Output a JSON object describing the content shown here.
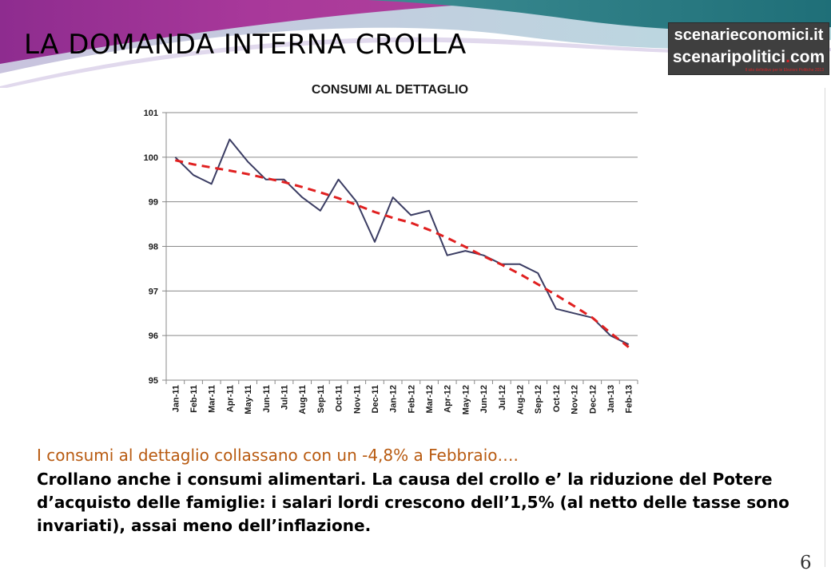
{
  "slide": {
    "title": "LA DOMANDA INTERNA CROLLA",
    "page_number": "6",
    "logo": {
      "line1": "scenarieconomici.it",
      "line2_main": "scenaripolitici",
      "line2_dot": ".",
      "line2_tail": "com",
      "tagline": "Il sito definitivo per le Elezioni Politiche 2013"
    },
    "caption": {
      "line1": "I consumi al dettaglio collassano con un -4,8% a Febbraio….",
      "line2": "Crollano anche i consumi alimentari. La causa del crollo e’ la riduzione del Potere d’acquisto delle famiglie: i salari lordi crescono dell’1,5% (al netto delle tasse sono invariati),  assai meno dell’inflazione."
    },
    "colors": {
      "accent_magenta": "#a0338f",
      "accent_teal": "#2a7f86",
      "caption_orange": "#b85a10",
      "series_line": "#3b3d63",
      "trend_line": "#e02020"
    }
  },
  "chart_data": {
    "type": "line",
    "title": "CONSUMI AL DETTAGLIO",
    "xlabel": "",
    "ylabel": "",
    "ylim": [
      95,
      101
    ],
    "yticks": [
      95,
      96,
      97,
      98,
      99,
      100,
      101
    ],
    "grid": true,
    "legend": "none",
    "categories": [
      "Jan-11",
      "Feb-11",
      "Mar-11",
      "Apr-11",
      "May-11",
      "Jun-11",
      "Jul-11",
      "Aug-11",
      "Sep-11",
      "Oct-11",
      "Nov-11",
      "Dec-11",
      "Jan-12",
      "Feb-12",
      "Mar-12",
      "Apr-12",
      "May-12",
      "Jun-12",
      "Jul-12",
      "Aug-12",
      "Sep-12",
      "Oct-12",
      "Nov-12",
      "Dec-12",
      "Jan-13",
      "Feb-13"
    ],
    "series": [
      {
        "values": [
          100.0,
          99.6,
          99.4,
          100.4,
          99.9,
          99.5,
          99.5,
          99.1,
          98.8,
          99.5,
          99.0,
          98.1,
          99.1,
          98.7,
          98.8,
          97.8,
          97.9,
          97.8,
          97.6,
          97.6,
          97.4,
          96.6,
          96.5,
          96.4,
          96.0,
          95.8
        ],
        "style": "solid"
      },
      {
        "values": [
          99.93,
          99.84,
          99.77,
          99.7,
          99.62,
          99.53,
          99.44,
          99.33,
          99.21,
          99.08,
          98.93,
          98.77,
          98.64,
          98.53,
          98.37,
          98.19,
          97.99,
          97.78,
          97.59,
          97.38,
          97.15,
          96.91,
          96.66,
          96.4,
          96.06,
          95.74
        ],
        "style": "dashed"
      }
    ]
  }
}
